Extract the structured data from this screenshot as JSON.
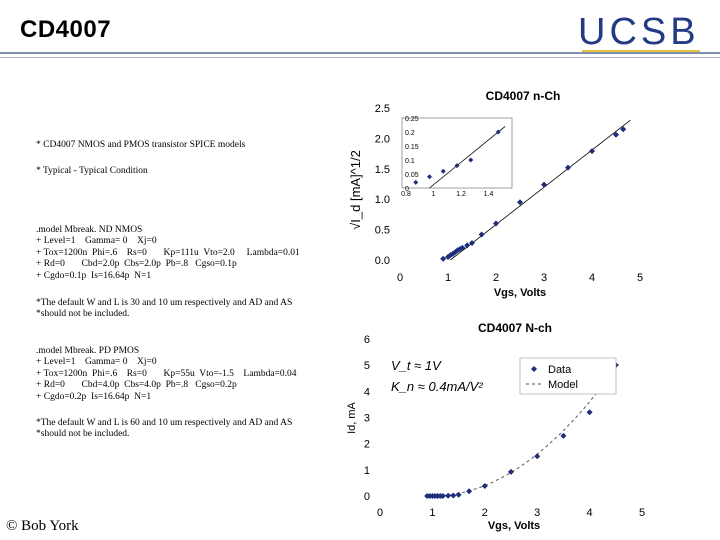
{
  "slide": {
    "title": "CD4007",
    "logo_text": "UCSB",
    "footer": "© Bob York"
  },
  "models": {
    "header_line": "* CD4007 NMOS and PMOS transistor SPICE models",
    "condition_line": "* Typical - Typical Condition",
    "nmos_lines": [
      ".model Mbreak. ND NMOS",
      "+ Level=1    Gamma= 0    Xj=0",
      "+ Tox=1200n  Phi=.6    Rs=0       Kp=111u  Vto=2.0     Lambda=0.01",
      "+ Rd=0       Cbd=2.0p  Cbs=2.0p  Pb=.8   Cgso=0.1p",
      "+ Cgdo=0.1p  Is=16.64p  N=1"
    ],
    "nmos_note": [
      "*The default W and L is 30 and 10 um respectively and AD and AS",
      "*should not be included."
    ],
    "pmos_lines": [
      ".model Mbreak. PD PMOS",
      "+ Level=1    Gamma= 0    Xj=0",
      "+ Tox=1200n  Phi=.6    Rs=0       Kp=55u  Vto=-1.5    Lambda=0.04",
      "+ Rd=0       Cbd=4.0p  Cbs=4.0p  Pb=.8   Cgso=0.2p",
      "+ Cgdo=0.2p  Is=16.64p  N=1"
    ],
    "pmos_note": [
      "*The default W and L is 60 and 10 um respectively and AD and AS",
      "*should not be included."
    ]
  },
  "colors": {
    "marker": "#1f2d7a",
    "logo": "#233a84",
    "logo_accent": "#e8c040"
  },
  "chart_data": [
    {
      "type": "scatter",
      "title": "CD4007 n-Ch",
      "xlabel": "Vgs, Volts",
      "ylabel": "√I_d [mA]^1/2",
      "xlim": [
        0,
        5
      ],
      "ylim": [
        0,
        2.5
      ],
      "x_ticks": [
        "0",
        "1",
        "2",
        "3",
        "4",
        "5"
      ],
      "y_ticks": [
        "0.0",
        "0.5",
        "1.0",
        "1.5",
        "2.0",
        "2.5"
      ],
      "grid": false,
      "series": [
        {
          "points": [
            [
              0.9,
              0.02
            ],
            [
              1.0,
              0.05
            ],
            [
              1.05,
              0.08
            ],
            [
              1.1,
              0.1
            ],
            [
              1.15,
              0.13
            ],
            [
              1.2,
              0.16
            ],
            [
              1.25,
              0.18
            ],
            [
              1.3,
              0.2
            ],
            [
              1.4,
              0.24
            ],
            [
              1.5,
              0.28
            ],
            [
              1.7,
              0.42
            ],
            [
              2.0,
              0.6
            ],
            [
              2.5,
              0.95
            ],
            [
              3.0,
              1.24
            ],
            [
              3.5,
              1.52
            ],
            [
              4.0,
              1.79
            ],
            [
              4.5,
              2.06
            ],
            [
              4.65,
              2.15
            ]
          ]
        }
      ],
      "fit_line": [
        [
          1.05,
          0.0
        ],
        [
          4.8,
          2.3
        ]
      ],
      "inset": {
        "xlim": [
          0.8,
          1.6
        ],
        "ylim": [
          0,
          0.25
        ],
        "x_ticks": [
          "0.8",
          "1",
          "1.2",
          "1.4"
        ],
        "y_ticks": [
          "0.25",
          "0.2",
          "0.15",
          "0.1",
          "0.05",
          "0"
        ],
        "points": [
          [
            0.9,
            0.02
          ],
          [
            1.0,
            0.04
          ],
          [
            1.1,
            0.06
          ],
          [
            1.2,
            0.08
          ],
          [
            1.3,
            0.1
          ],
          [
            1.5,
            0.2
          ]
        ],
        "fit_line": [
          [
            1.0,
            0.0
          ],
          [
            1.55,
            0.22
          ]
        ]
      }
    },
    {
      "type": "scatter",
      "title": "CD4007 N-ch",
      "xlabel": "Vgs, Volts",
      "ylabel": "Id, mA",
      "xlim": [
        0,
        5
      ],
      "ylim": [
        0,
        6
      ],
      "x_ticks": [
        "0",
        "1",
        "2",
        "3",
        "4",
        "5"
      ],
      "y_ticks": [
        "0",
        "1",
        "2",
        "3",
        "4",
        "5",
        "6"
      ],
      "grid": false,
      "legend": {
        "position": "top-right",
        "entries": [
          "Data",
          "Model"
        ]
      },
      "annotations": [
        "V_t ≈ 1V",
        "K_n ≈ 0.4mA/V²"
      ],
      "series": [
        {
          "name": "Data",
          "points": [
            [
              0.9,
              0.0
            ],
            [
              0.95,
              0.0
            ],
            [
              1.0,
              0.0
            ],
            [
              1.05,
              0.0
            ],
            [
              1.1,
              0.0
            ],
            [
              1.15,
              0.0
            ],
            [
              1.2,
              0.0
            ],
            [
              1.3,
              0.01
            ],
            [
              1.4,
              0.02
            ],
            [
              1.5,
              0.05
            ],
            [
              1.7,
              0.18
            ],
            [
              2.0,
              0.38
            ],
            [
              2.5,
              0.92
            ],
            [
              3.0,
              1.52
            ],
            [
              3.5,
              2.3
            ],
            [
              4.0,
              3.2
            ],
            [
              4.5,
              5.0
            ]
          ]
        },
        {
          "name": "Model",
          "vt": 1.0,
          "kn": 0.4
        }
      ]
    }
  ]
}
